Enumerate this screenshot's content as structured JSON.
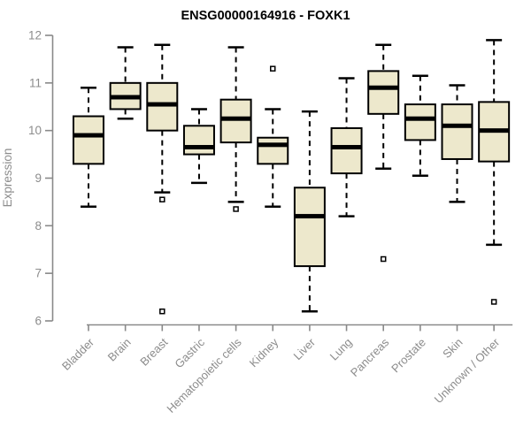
{
  "chart_data": {
    "type": "boxplot",
    "title": "ENSG00000164916 - FOXK1",
    "ylabel": "Expression",
    "xlabel": "",
    "ylim": [
      6,
      12
    ],
    "yticks": [
      12,
      11,
      10,
      9,
      8,
      7,
      6
    ],
    "grid": false,
    "legend": "none",
    "categories": [
      "Bladder",
      "Brain",
      "Breast",
      "Gastric",
      "Hematopoietic cells",
      "Kidney",
      "Liver",
      "Lung",
      "Pancreas",
      "Prostate",
      "Skin",
      "Unknown / Other"
    ],
    "series": [
      {
        "category": "Bladder",
        "whisker_low": 8.4,
        "q1": 9.3,
        "median": 9.9,
        "q3": 10.3,
        "whisker_high": 10.9,
        "outliers": []
      },
      {
        "category": "Brain",
        "whisker_low": 10.25,
        "q1": 10.45,
        "median": 10.7,
        "q3": 11.0,
        "whisker_high": 11.75,
        "outliers": []
      },
      {
        "category": "Breast",
        "whisker_low": 8.7,
        "q1": 10.0,
        "median": 10.55,
        "q3": 11.0,
        "whisker_high": 11.8,
        "outliers": [
          8.55,
          6.2
        ]
      },
      {
        "category": "Gastric",
        "whisker_low": 8.9,
        "q1": 9.5,
        "median": 9.65,
        "q3": 10.1,
        "whisker_high": 10.45,
        "outliers": []
      },
      {
        "category": "Hematopoietic cells",
        "whisker_low": 8.5,
        "q1": 9.75,
        "median": 10.25,
        "q3": 10.65,
        "whisker_high": 11.75,
        "outliers": [
          8.35
        ]
      },
      {
        "category": "Kidney",
        "whisker_low": 8.4,
        "q1": 9.3,
        "median": 9.7,
        "q3": 9.85,
        "whisker_high": 10.45,
        "outliers": [
          11.3
        ]
      },
      {
        "category": "Liver",
        "whisker_low": 6.2,
        "q1": 7.15,
        "median": 8.2,
        "q3": 8.8,
        "whisker_high": 10.4,
        "outliers": []
      },
      {
        "category": "Lung",
        "whisker_low": 8.2,
        "q1": 9.1,
        "median": 9.65,
        "q3": 10.05,
        "whisker_high": 11.1,
        "outliers": []
      },
      {
        "category": "Pancreas",
        "whisker_low": 9.2,
        "q1": 10.35,
        "median": 10.9,
        "q3": 11.25,
        "whisker_high": 11.8,
        "outliers": [
          7.3
        ]
      },
      {
        "category": "Prostate",
        "whisker_low": 9.05,
        "q1": 9.8,
        "median": 10.25,
        "q3": 10.55,
        "whisker_high": 11.15,
        "outliers": []
      },
      {
        "category": "Skin",
        "whisker_low": 8.5,
        "q1": 9.4,
        "median": 10.1,
        "q3": 10.55,
        "whisker_high": 10.95,
        "outliers": []
      },
      {
        "category": "Unknown / Other",
        "whisker_low": 7.6,
        "q1": 9.35,
        "median": 10.0,
        "q3": 10.6,
        "whisker_high": 11.9,
        "outliers": [
          6.4
        ]
      }
    ]
  },
  "style": {
    "background": "#FFFFFF",
    "box_fill": "#EDE8CC",
    "box_stroke": "#000000",
    "median_color": "#000000",
    "whisker_color": "#000000",
    "outlier_stroke": "#000000",
    "outlier_fill": "#FFFFFF",
    "axis_color": "#898989",
    "tick_label_color": "#8C8C8C",
    "title_color": "#000000"
  }
}
